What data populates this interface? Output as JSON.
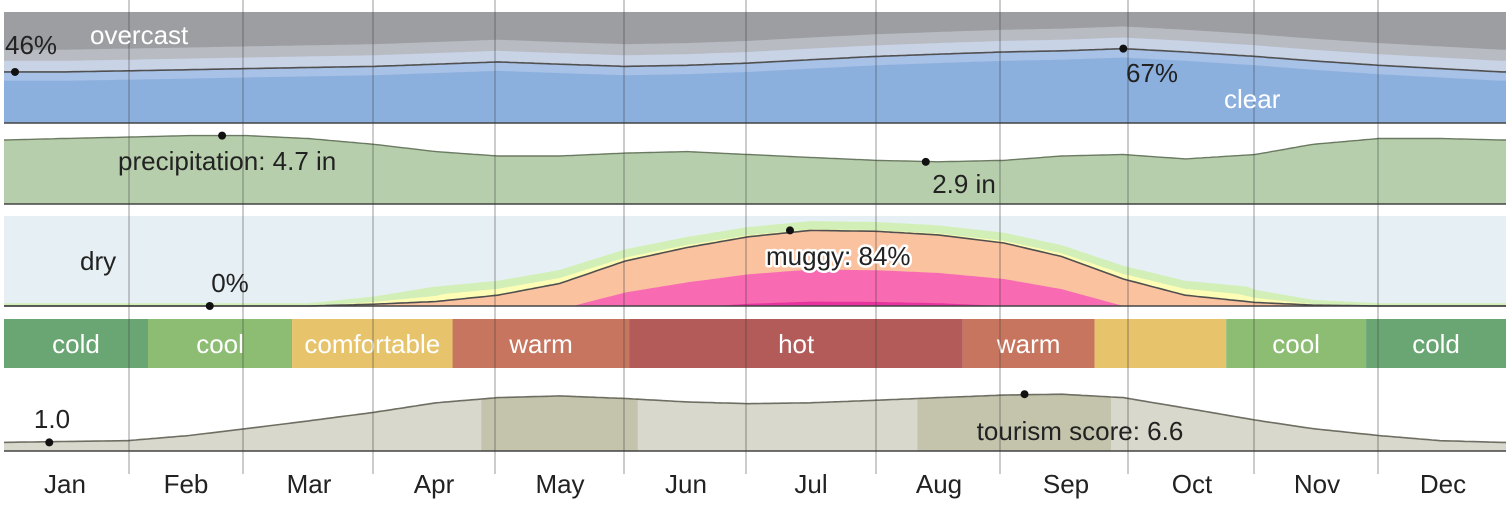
{
  "chart_data": {
    "type": "area",
    "months": [
      "Jan",
      "Feb",
      "Mar",
      "Apr",
      "May",
      "Jun",
      "Jul",
      "Aug",
      "Sep",
      "Oct",
      "Nov",
      "Dec"
    ],
    "cloud_cover": {
      "labels": {
        "overcast": "overcast",
        "clear": "clear"
      },
      "annotations": [
        {
          "text": "46%",
          "day": 1,
          "value": 46
        },
        {
          "text": "67%",
          "day": 273,
          "value": 67
        }
      ],
      "clear_percent": {
        "days": [
          1,
          15,
          31,
          46,
          60,
          75,
          91,
          106,
          121,
          136,
          152,
          167,
          182,
          197,
          213,
          228,
          244,
          258,
          273,
          288,
          305,
          319,
          335,
          350,
          365
        ],
        "values": [
          46,
          46,
          47,
          48,
          49,
          50,
          51,
          53,
          55,
          53,
          51,
          52,
          54,
          57,
          60,
          62,
          64,
          65,
          67,
          64,
          60,
          56,
          52,
          49,
          46
        ]
      },
      "colors": {
        "overcast": "#9c9ea2",
        "mostly_cloudy": "#b8bbc2",
        "partly_cloudy": "#c9d3e6",
        "mostly_clear": "#a8c1e6",
        "clear": "#8cb0de"
      }
    },
    "precipitation": {
      "unit": "in",
      "annotations": [
        {
          "text": "precipitation: 4.7 in",
          "day": 54,
          "value": 4.7
        },
        {
          "text": "2.9 in",
          "day": 225,
          "value": 2.9
        }
      ],
      "days": [
        1,
        15,
        31,
        46,
        60,
        75,
        91,
        106,
        121,
        136,
        152,
        167,
        182,
        197,
        213,
        228,
        244,
        258,
        273,
        288,
        305,
        319,
        335,
        350,
        365
      ],
      "values": [
        4.4,
        4.5,
        4.6,
        4.7,
        4.7,
        4.5,
        4.1,
        3.6,
        3.3,
        3.3,
        3.5,
        3.6,
        3.4,
        3.2,
        3.0,
        2.9,
        3.0,
        3.3,
        3.4,
        3.1,
        3.4,
        4.1,
        4.5,
        4.5,
        4.4
      ],
      "color": "#b7ceac"
    },
    "humidity": {
      "labels": {
        "dry": "dry"
      },
      "annotations": [
        {
          "text": "muggy: 84%",
          "day": 192,
          "value": 84
        },
        {
          "text": "0%",
          "day": 51,
          "value": 0
        }
      ],
      "days": [
        1,
        15,
        31,
        46,
        60,
        75,
        91,
        106,
        121,
        136,
        152,
        167,
        182,
        197,
        213,
        228,
        244,
        258,
        273,
        288,
        305,
        319,
        335,
        350,
        365
      ],
      "muggy_percent": [
        0,
        0,
        0,
        0,
        0,
        0,
        2,
        5,
        12,
        25,
        50,
        65,
        77,
        84,
        83,
        79,
        70,
        55,
        30,
        12,
        4,
        1,
        0,
        0,
        0
      ],
      "colors": {
        "dry": "#e6eff3",
        "comfortable": "#d2efb8",
        "humid": "#fdfdb6",
        "muggy": "#fbc2a0",
        "oppressive": "#f86bb3",
        "miserable": "#e8339e"
      }
    },
    "temperature_bands": [
      {
        "label": "cold",
        "start_day": 1,
        "end_day": 36,
        "color": "#6aa673"
      },
      {
        "label": "cool",
        "start_day": 36,
        "end_day": 71,
        "color": "#8cbd73"
      },
      {
        "label": "comfortable",
        "start_day": 71,
        "end_day": 110,
        "color": "#e7c46c"
      },
      {
        "label": "warm",
        "start_day": 110,
        "end_day": 153,
        "color": "#c7755e"
      },
      {
        "label": "hot",
        "start_day": 153,
        "end_day": 234,
        "color": "#b35b59"
      },
      {
        "label": "warm",
        "start_day": 234,
        "end_day": 266,
        "color": "#c7755e"
      },
      {
        "label": "",
        "start_day": 266,
        "end_day": 298,
        "color": "#e7c46c"
      },
      {
        "label": "cool",
        "start_day": 298,
        "end_day": 332,
        "color": "#8cbd73"
      },
      {
        "label": "cold",
        "start_day": 332,
        "end_day": 366,
        "color": "#6aa673"
      }
    ],
    "tourism": {
      "annotations": [
        {
          "text": "1.0",
          "day": 12,
          "value": 1.0
        },
        {
          "text": "tourism score: 6.6",
          "day": 249,
          "value": 6.6
        }
      ],
      "days": [
        1,
        15,
        31,
        46,
        60,
        75,
        91,
        106,
        121,
        136,
        152,
        167,
        182,
        197,
        213,
        228,
        244,
        258,
        273,
        288,
        305,
        319,
        335,
        350,
        365
      ],
      "values": [
        1.0,
        1.1,
        1.2,
        1.8,
        2.6,
        3.5,
        4.5,
        5.6,
        6.2,
        6.4,
        6.1,
        5.7,
        5.5,
        5.6,
        5.9,
        6.2,
        6.5,
        6.6,
        6.2,
        5.0,
        3.6,
        2.6,
        1.8,
        1.2,
        1.0
      ],
      "best_periods": [
        {
          "start_day": 117,
          "end_day": 155
        },
        {
          "start_day": 223,
          "end_day": 270
        }
      ],
      "colors": {
        "fill": "#d8d8cc",
        "best": "#c4c4ac",
        "line": "#6e6e62"
      }
    }
  }
}
